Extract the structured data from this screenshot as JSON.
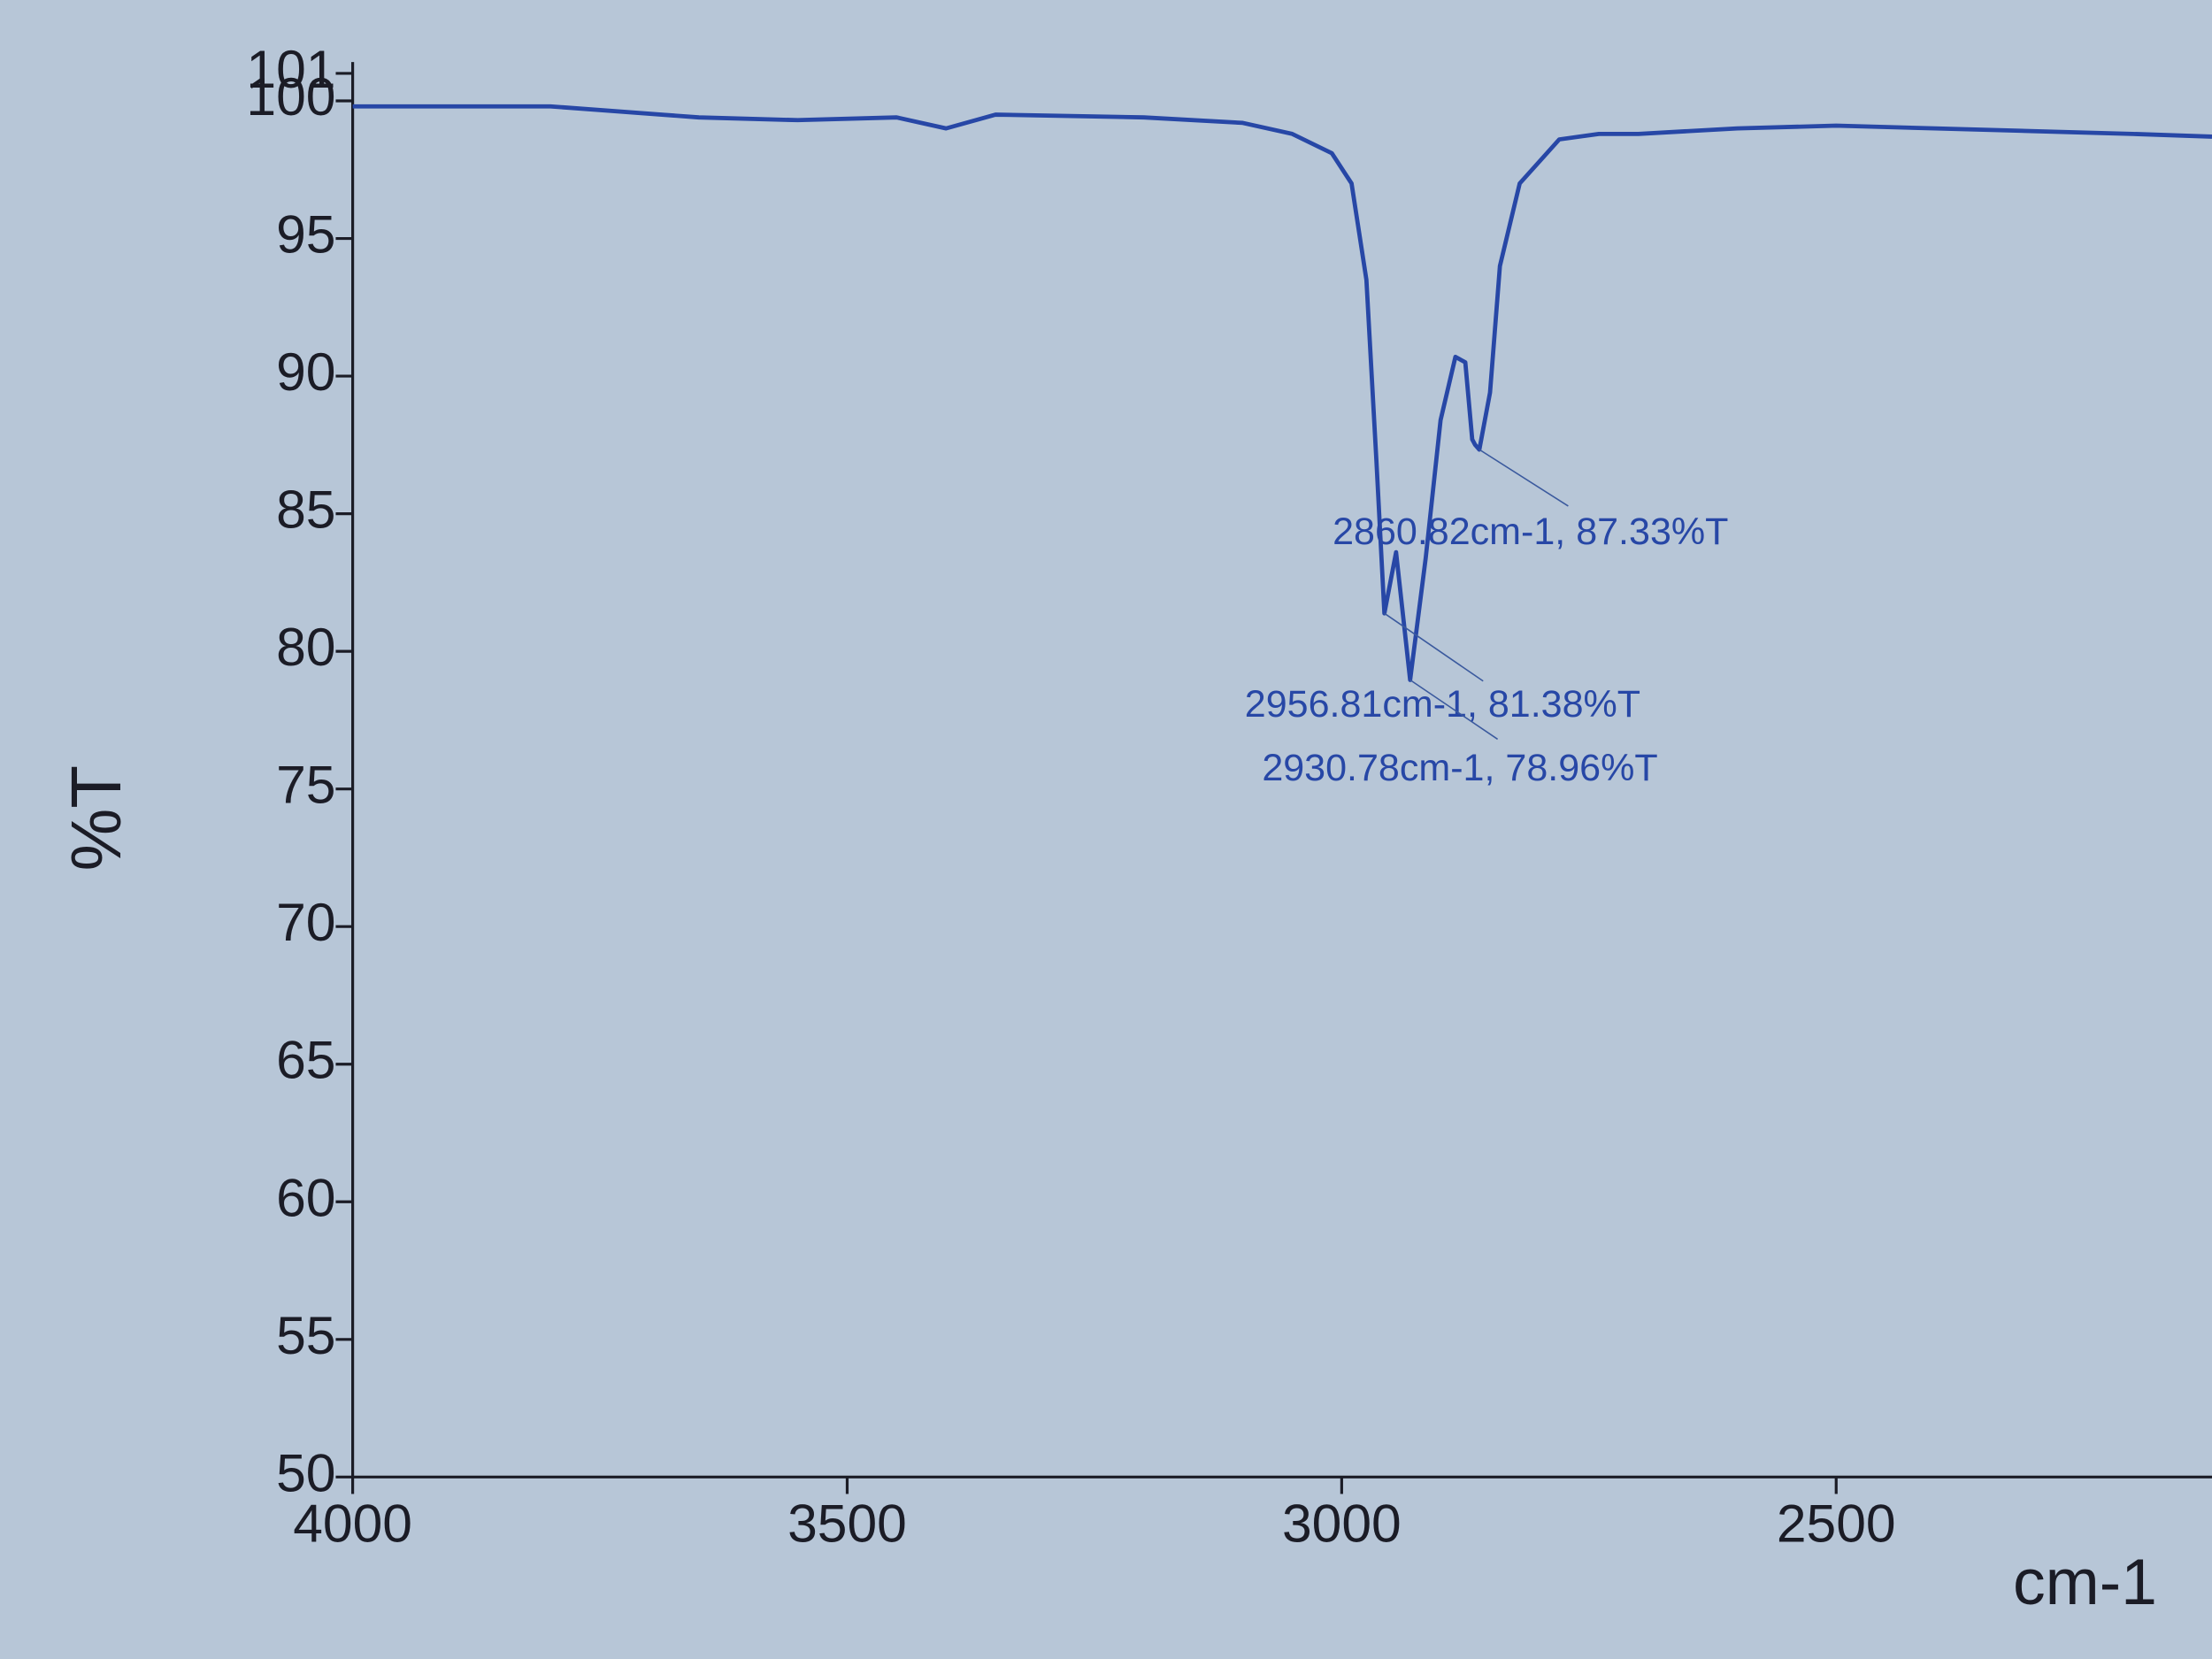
{
  "chart_data": {
    "type": "line",
    "xlabel": "cm-1",
    "ylabel": "%T",
    "color": "#2747a6",
    "x": [
      4000,
      3800,
      3650,
      3550,
      3450,
      3400,
      3350,
      3200,
      3100,
      3050,
      3010,
      2990,
      2975,
      2965,
      2956.81,
      2945,
      2930.78,
      2915,
      2900,
      2885,
      2875,
      2868,
      2865,
      2860.82,
      2850,
      2840,
      2820,
      2780,
      2740,
      2700,
      2600,
      2500,
      2400,
      2300,
      2200,
      2120
    ],
    "values": [
      99.8,
      99.8,
      99.4,
      99.3,
      99.4,
      99.0,
      99.5,
      99.4,
      99.2,
      98.8,
      98.1,
      97.0,
      93.5,
      87.0,
      81.38,
      83.6,
      78.96,
      83.4,
      88.4,
      90.7,
      90.5,
      87.7,
      87.5,
      87.33,
      89.4,
      94.0,
      97.0,
      98.6,
      98.8,
      98.8,
      99.0,
      99.1,
      99.0,
      98.9,
      98.8,
      98.7
    ],
    "xlim": [
      4000,
      2120
    ],
    "ylim": [
      50,
      101
    ],
    "xticks": [
      4000,
      3500,
      3000,
      2500
    ],
    "yticks": [
      50,
      55,
      60,
      65,
      70,
      75,
      80,
      85,
      90,
      95,
      100,
      101
    ],
    "annotations": [
      {
        "x": 2860.82,
        "y": 87.33,
        "label": "2860.82cm-1, 87.33%T"
      },
      {
        "x": 2956.81,
        "y": 81.38,
        "label": "2956.81cm-1, 81.38%T"
      },
      {
        "x": 2930.78,
        "y": 78.96,
        "label": "2930.78cm-1, 78.96%T"
      }
    ]
  }
}
